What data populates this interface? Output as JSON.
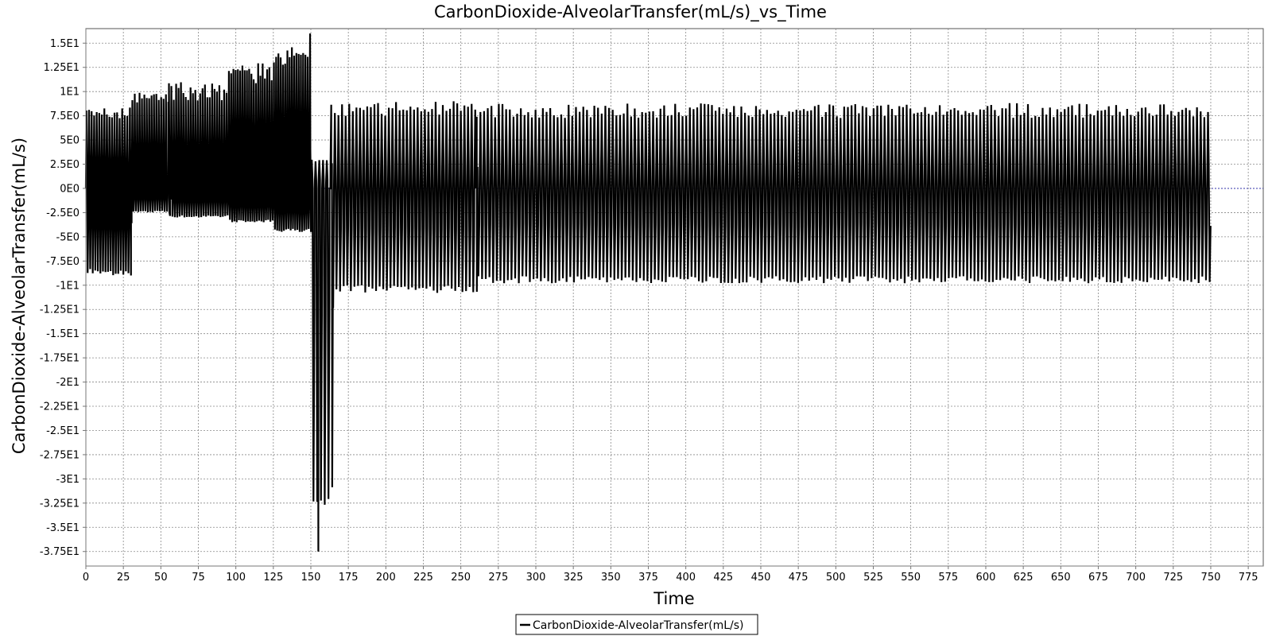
{
  "chart_data": {
    "type": "line",
    "title": "CarbonDioxide-AlveolarTransfer(mL/s)_vs_Time",
    "xlabel": "Time",
    "ylabel": "CarbonDioxide-AlveolarTransfer(mL/s)",
    "xlim": [
      0,
      785
    ],
    "ylim": [
      -39,
      16.5
    ],
    "x_ticks": [
      0,
      25,
      50,
      75,
      100,
      125,
      150,
      175,
      200,
      225,
      250,
      275,
      300,
      325,
      350,
      375,
      400,
      425,
      450,
      475,
      500,
      525,
      550,
      575,
      600,
      625,
      650,
      675,
      700,
      725,
      750,
      775
    ],
    "x_tick_labels": [
      "0",
      "25",
      "50",
      "75",
      "100",
      "125",
      "150",
      "175",
      "200",
      "225",
      "250",
      "275",
      "300",
      "325",
      "350",
      "375",
      "400",
      "425",
      "450",
      "475",
      "500",
      "525",
      "550",
      "575",
      "600",
      "625",
      "650",
      "675",
      "700",
      "725",
      "750",
      "775"
    ],
    "y_ticks": [
      15,
      12.5,
      10,
      7.5,
      5,
      2.5,
      0,
      -2.5,
      -5,
      -7.5,
      -10,
      -12.5,
      -15,
      -17.5,
      -20,
      -22.5,
      -25,
      -27.5,
      -30,
      -32.5,
      -35,
      -37.5
    ],
    "y_tick_labels": [
      "1.5E1",
      "1.25E1",
      "1E1",
      "7.5E0",
      "5E0",
      "2.5E0",
      "0E0",
      "-2.5E0",
      "-5E0",
      "-7.5E0",
      "-1E1",
      "-1.25E1",
      "-1.5E1",
      "-1.75E1",
      "-2E1",
      "-2.25E1",
      "-2.5E1",
      "-2.75E1",
      "-3E1",
      "-3.25E1",
      "-3.5E1",
      "-3.75E1"
    ],
    "grid": true,
    "legend_position": "bottom-center",
    "series": [
      {
        "name": "CarbonDioxide-AlveolarTransfer(mL/s)",
        "color": "#000000",
        "segments": [
          {
            "x_start": 0,
            "x_end": 29,
            "period": 1.7,
            "max": 8.5,
            "min": -9
          },
          {
            "x_start": 29,
            "x_end": 55,
            "period": 1.6,
            "max": 10,
            "min": -2.5
          },
          {
            "x_start": 55,
            "x_end": 95,
            "period": 1.6,
            "max": 11,
            "min": -3
          },
          {
            "x_start": 95,
            "x_end": 125,
            "period": 1.5,
            "max": 13,
            "min": -3.5
          },
          {
            "x_start": 125,
            "x_end": 150,
            "period": 1.5,
            "max": 15,
            "min": -4.5
          },
          {
            "x_start": 150,
            "x_end": 163,
            "period": 2.5,
            "max": 3,
            "min": -33
          },
          {
            "x_start": 163,
            "x_end": 260,
            "period": 2.4,
            "max": 9,
            "min": -10.8
          },
          {
            "x_start": 260,
            "x_end": 750,
            "period": 2.45,
            "max": 8.8,
            "min": -9.8
          }
        ],
        "peak_max": 16,
        "trough_min": -37.5
      }
    ],
    "reference_line": {
      "y": 0,
      "color": "#3333aa"
    }
  }
}
